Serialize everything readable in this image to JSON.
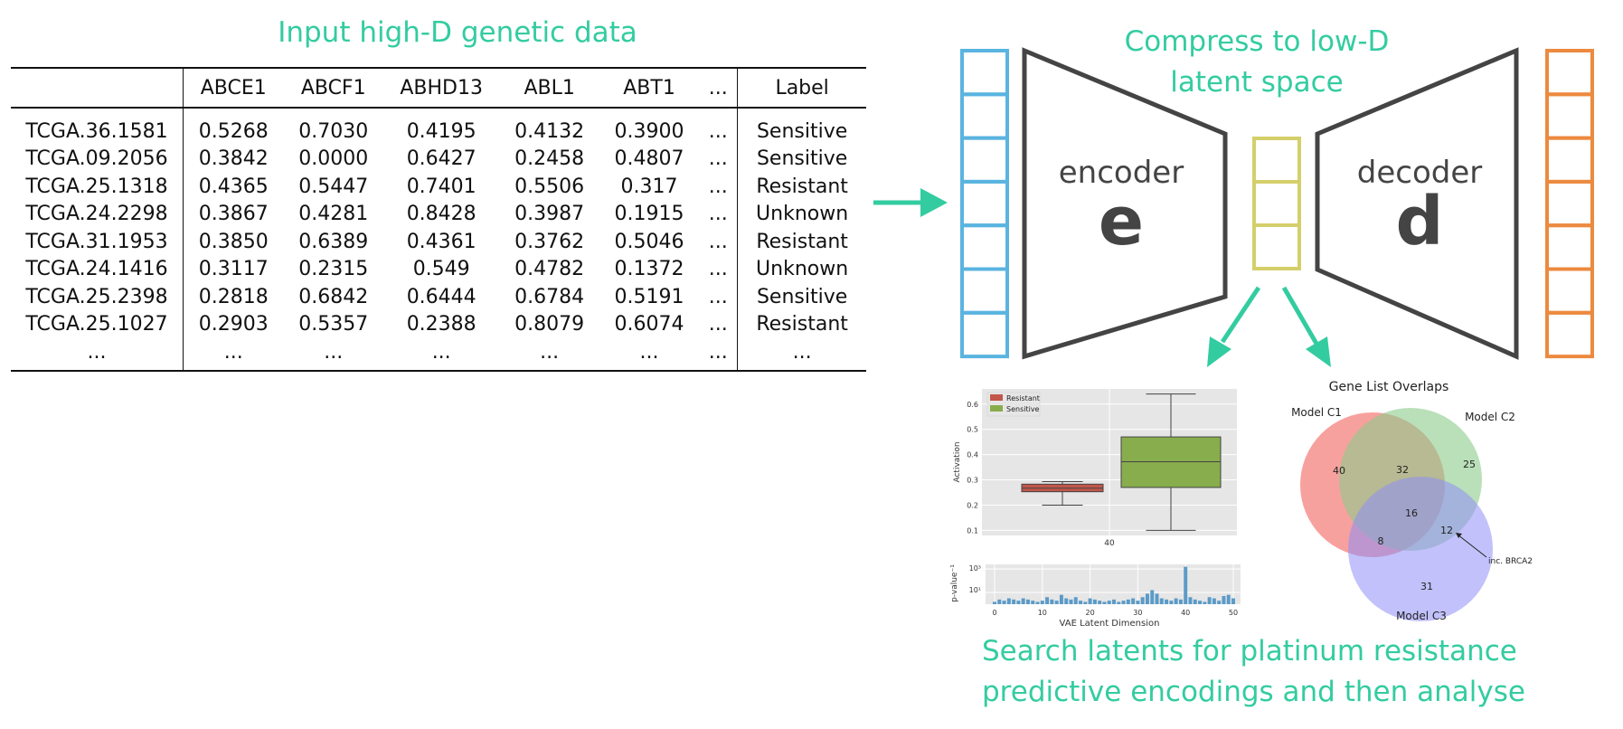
{
  "headings": {
    "input": "Input high-D genetic data",
    "compress_line1": "Compress to low-D",
    "compress_line2": "latent space",
    "search_line1": "Search latents for platinum resistance",
    "search_line2": "predictive encodings and then analyse"
  },
  "table": {
    "headers": [
      "",
      "ABCE1",
      "ABCF1",
      "ABHD13",
      "ABL1",
      "ABT1",
      "...",
      "Label"
    ],
    "rows": [
      [
        "TCGA.36.1581",
        "0.5268",
        "0.7030",
        "0.4195",
        "0.4132",
        "0.3900",
        "...",
        "Sensitive"
      ],
      [
        "TCGA.09.2056",
        "0.3842",
        "0.0000",
        "0.6427",
        "0.2458",
        "0.4807",
        "...",
        "Sensitive"
      ],
      [
        "TCGA.25.1318",
        "0.4365",
        "0.5447",
        "0.7401",
        "0.5506",
        "0.317",
        "...",
        "Resistant"
      ],
      [
        "TCGA.24.2298",
        "0.3867",
        "0.4281",
        "0.8428",
        "0.3987",
        "0.1915",
        "...",
        "Unknown"
      ],
      [
        "TCGA.31.1953",
        "0.3850",
        "0.6389",
        "0.4361",
        "0.3762",
        "0.5046",
        "...",
        "Resistant"
      ],
      [
        "TCGA.24.1416",
        "0.3117",
        "0.2315",
        "0.549",
        "0.4782",
        "0.1372",
        "...",
        "Unknown"
      ],
      [
        "TCGA.25.2398",
        "0.2818",
        "0.6842",
        "0.6444",
        "0.6784",
        "0.5191",
        "...",
        "Sensitive"
      ],
      [
        "TCGA.25.1027",
        "0.2903",
        "0.5357",
        "0.2388",
        "0.8079",
        "0.6074",
        "...",
        "Resistant"
      ],
      [
        "...",
        "...",
        "...",
        "...",
        "...",
        "...",
        "...",
        "..."
      ]
    ]
  },
  "autoencoder": {
    "encoder_word": "encoder",
    "encoder_letter": "e",
    "decoder_word": "decoder",
    "decoder_letter": "d",
    "colors": {
      "input": "#5ab4e0",
      "latent": "#d4cf6a",
      "output": "#ec8a3f",
      "frame": "#444444",
      "accent": "#33cca0"
    }
  },
  "chart_data": [
    {
      "type": "box",
      "legend": [
        "Resistant",
        "Sensitive"
      ],
      "legend_colors": [
        "#c1564a",
        "#88ad4d"
      ],
      "categories": [
        "40"
      ],
      "ylabel": "Activation",
      "yticks": [
        "0.1",
        "0.2",
        "0.3",
        "0.4",
        "0.5",
        "0.6"
      ],
      "ylim": [
        0.08,
        0.66
      ],
      "boxes": [
        {
          "name": "Resistant",
          "whisker_low": 0.2,
          "q1": 0.253,
          "median": 0.267,
          "q3": 0.283,
          "whisker_high": 0.293
        },
        {
          "name": "Sensitive",
          "whisker_low": 0.1,
          "q1": 0.27,
          "median": 0.372,
          "q3": 0.47,
          "whisker_high": 0.64
        }
      ],
      "grid": true
    },
    {
      "type": "bar",
      "ylabel": "p-value⁻¹",
      "yticks": [
        "10¹",
        "10³"
      ],
      "xlabel": "VAE Latent Dimension",
      "xticks": [
        "0",
        "10",
        "20",
        "30",
        "40",
        "50"
      ],
      "x": [
        0,
        1,
        2,
        3,
        4,
        5,
        6,
        7,
        8,
        9,
        10,
        11,
        12,
        13,
        14,
        15,
        16,
        17,
        18,
        19,
        20,
        21,
        22,
        23,
        24,
        25,
        26,
        27,
        28,
        29,
        30,
        31,
        32,
        33,
        34,
        35,
        36,
        37,
        38,
        39,
        40,
        41,
        42,
        43,
        44,
        45,
        46,
        47,
        48,
        49,
        50
      ],
      "values_log10": [
        0.2,
        0.4,
        0.3,
        0.5,
        0.4,
        0.3,
        0.5,
        0.4,
        0.3,
        0.2,
        0.3,
        0.6,
        0.4,
        0.3,
        0.8,
        0.5,
        0.4,
        0.6,
        0.3,
        0.2,
        0.5,
        0.4,
        0.3,
        0.2,
        0.3,
        0.4,
        0.2,
        0.3,
        0.4,
        0.5,
        0.3,
        0.6,
        0.9,
        1.2,
        0.9,
        0.5,
        0.4,
        0.3,
        0.5,
        0.4,
        3.2,
        0.6,
        0.4,
        0.3,
        0.2,
        0.6,
        0.5,
        0.3,
        0.7,
        0.8,
        0.5
      ],
      "ylim_log10": [
        0,
        3.4
      ],
      "grid": true
    },
    {
      "type": "venn",
      "title": "Gene List Overlaps",
      "sets": [
        "Model C1",
        "Model C2",
        "Model C3"
      ],
      "set_colors": [
        "#f4827e",
        "#8ccc8a",
        "#8f8ef7"
      ],
      "regions": {
        "C1_only": 40,
        "C1_C2": 32,
        "C2_only": 25,
        "C1_C2_C3": 16,
        "C1_C3": 8,
        "C2_C3": 12,
        "C3_only": 31
      },
      "annotation": "inc. BRCA2"
    }
  ]
}
